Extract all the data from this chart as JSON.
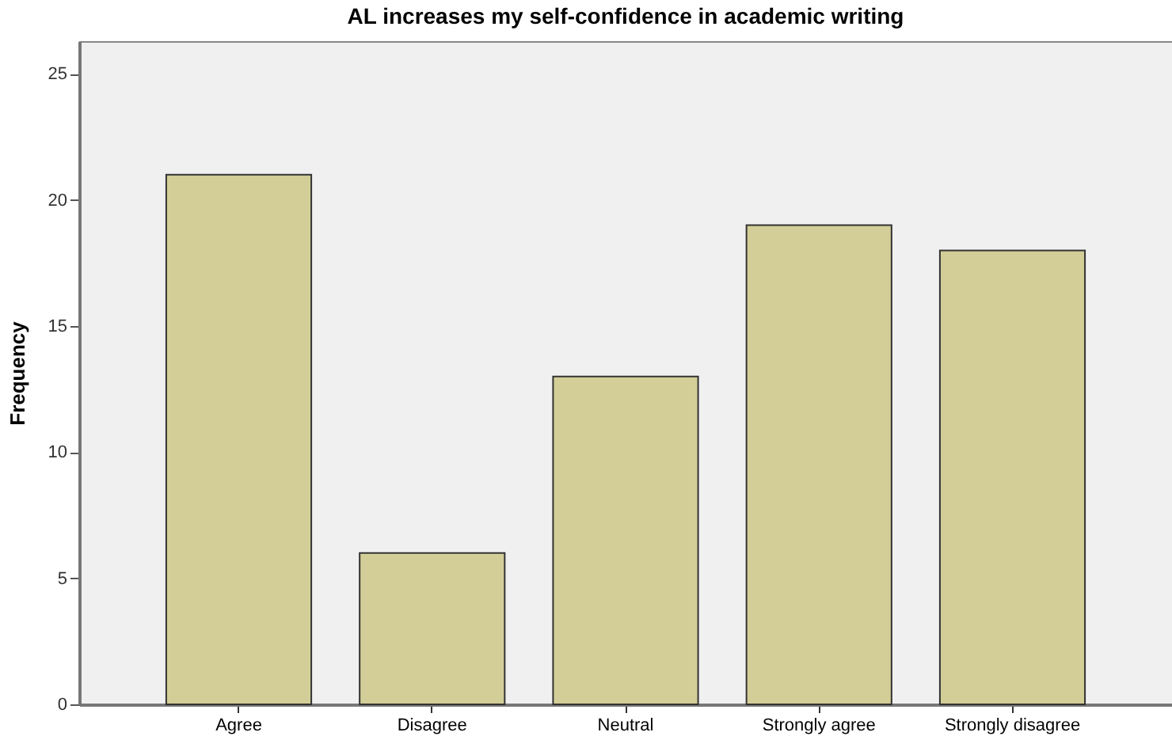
{
  "chart_data": {
    "type": "bar",
    "title": "AL increases my self-confidence in academic writing",
    "ylabel": "Frequency",
    "categories": [
      "Agree",
      "Disagree",
      "Neutral",
      "Strongly agree",
      "Strongly disagree"
    ],
    "values": [
      21,
      6,
      13,
      19,
      18
    ],
    "color": "#d3ce98",
    "ylim": [
      0,
      26.3
    ],
    "yticks": [
      0,
      5,
      10,
      15,
      20,
      25
    ],
    "grid": false
  }
}
